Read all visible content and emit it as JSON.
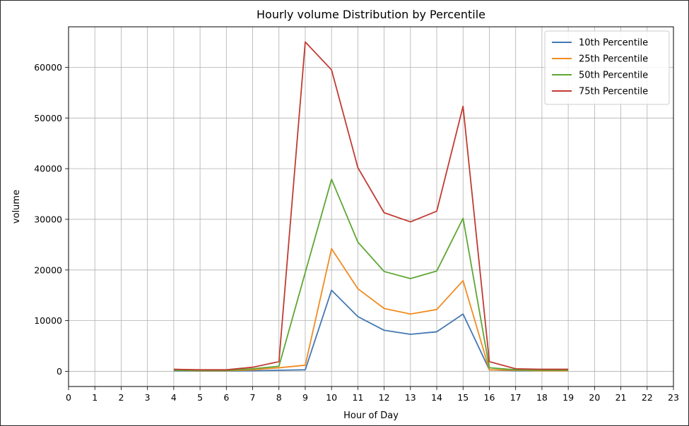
{
  "chart_data": {
    "type": "line",
    "title": "Hourly volume Distribution by Percentile",
    "xlabel": "Hour of Day",
    "ylabel": "volume",
    "xlim": [
      0,
      23
    ],
    "ylim": [
      -3000,
      68000
    ],
    "xticks": [
      0,
      1,
      2,
      3,
      4,
      5,
      6,
      7,
      8,
      9,
      10,
      11,
      12,
      13,
      14,
      15,
      16,
      17,
      18,
      19,
      20,
      21,
      22,
      23
    ],
    "yticks": [
      0,
      10000,
      20000,
      30000,
      40000,
      50000,
      60000
    ],
    "grid": true,
    "legend_position": "top-right",
    "x": [
      4,
      5,
      6,
      7,
      8,
      9,
      10,
      11,
      12,
      13,
      14,
      15,
      16,
      17,
      18,
      19
    ],
    "series": [
      {
        "name": "10th Percentile",
        "color": "#4477b3",
        "values": [
          100,
          50,
          50,
          100,
          200,
          300,
          16000,
          10800,
          8100,
          7300,
          7800,
          11300,
          300,
          100,
          100,
          100
        ]
      },
      {
        "name": "25th Percentile",
        "color": "#f08c21",
        "values": [
          200,
          100,
          100,
          300,
          700,
          1200,
          24200,
          16300,
          12400,
          11300,
          12200,
          17900,
          300,
          200,
          100,
          100
        ]
      },
      {
        "name": "50th Percentile",
        "color": "#5ea634",
        "values": [
          200,
          150,
          150,
          500,
          1000,
          19500,
          37900,
          25500,
          19700,
          18300,
          19800,
          30200,
          700,
          300,
          200,
          200
        ]
      },
      {
        "name": "75th Percentile",
        "color": "#c03b32",
        "values": [
          400,
          300,
          300,
          800,
          1900,
          65000,
          59500,
          40200,
          31300,
          29500,
          31600,
          52300,
          1900,
          500,
          400,
          400
        ]
      }
    ]
  }
}
